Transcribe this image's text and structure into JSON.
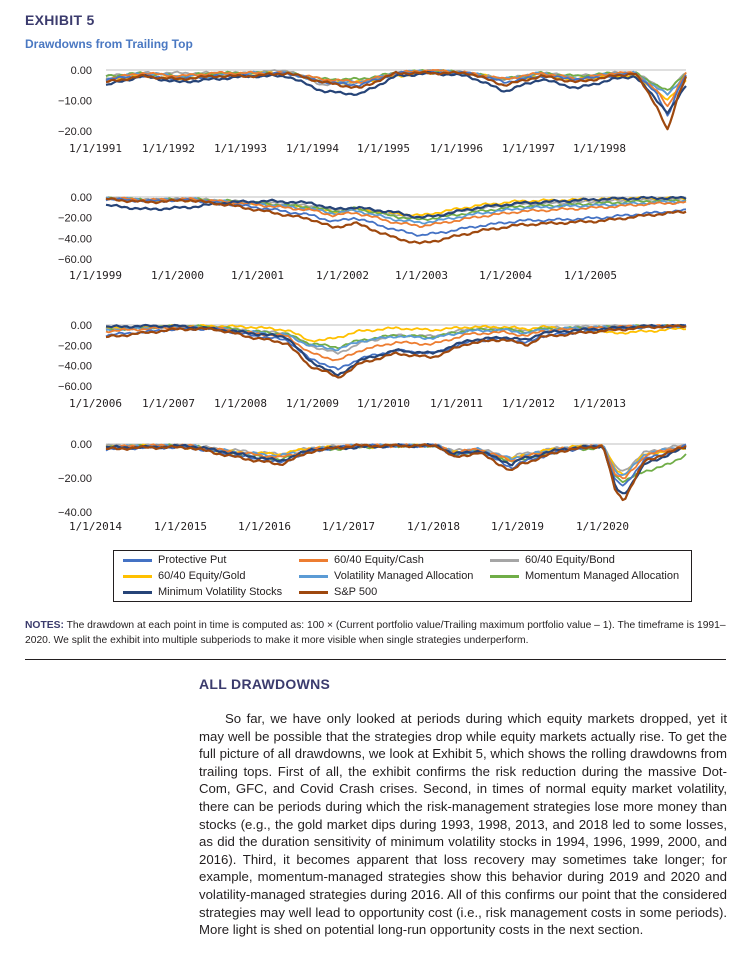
{
  "exhibit": {
    "title": "EXHIBIT 5",
    "subtitle": "Drawdowns from Trailing Top"
  },
  "colors": {
    "Protective Put": "#4472c4",
    "60/40 Equity/Cash": "#ed7d31",
    "60/40 Equity/Bond": "#a5a5a5",
    "60/40 Equity/Gold": "#ffc000",
    "Volatility Managed Allocation": "#5b9bd5",
    "Momentum Managed Allocation": "#70ad47",
    "Minimum Volatility Stocks": "#264478",
    "S&P 500": "#9e480e"
  },
  "legend": [
    {
      "name": "Protective Put",
      "color": "#4472c4"
    },
    {
      "name": "60/40 Equity/Cash",
      "color": "#ed7d31"
    },
    {
      "name": "60/40 Equity/Bond",
      "color": "#a5a5a5"
    },
    {
      "name": "60/40 Equity/Gold",
      "color": "#ffc000"
    },
    {
      "name": "Volatility Managed Allocation",
      "color": "#5b9bd5"
    },
    {
      "name": "Momentum Managed Allocation",
      "color": "#70ad47"
    },
    {
      "name": "Minimum Volatility Stocks",
      "color": "#264478"
    },
    {
      "name": "S&P 500",
      "color": "#9e480e"
    }
  ],
  "chart_data": [
    {
      "type": "line",
      "title": "",
      "yticks": [
        "0.00",
        "−10.00",
        "−20.00"
      ],
      "ylim": [
        -20,
        0
      ],
      "xlim": [
        1991,
        1999
      ],
      "xticks": [
        "1/1/1991",
        "1/1/1992",
        "1/1/1993",
        "1/1/1994",
        "1/1/1995",
        "1/1/1996",
        "1/1/1997",
        "1/1/1998"
      ],
      "x": [
        1991.0,
        1991.5,
        1992.0,
        1992.5,
        1993.0,
        1993.5,
        1994.0,
        1994.5,
        1995.0,
        1995.5,
        1996.0,
        1996.5,
        1997.0,
        1997.5,
        1998.0,
        1998.3,
        1998.6,
        1998.75,
        1998.9,
        1999.0
      ],
      "series": [
        {
          "name": "S&P 500",
          "values": [
            -4,
            -2,
            -3,
            -2,
            -2,
            -1,
            -4,
            -6,
            -1,
            -1,
            -1,
            -5,
            -2,
            -4,
            -2,
            -1,
            -12,
            -20,
            -8,
            -2
          ]
        },
        {
          "name": "Minimum Volatility Stocks",
          "values": [
            -5,
            -2,
            -4,
            -3,
            -2,
            -2,
            -7,
            -8,
            -2,
            -1,
            -2,
            -7,
            -3,
            -6,
            -3,
            -2,
            -10,
            -14,
            -9,
            -5
          ]
        },
        {
          "name": "Protective Put",
          "values": [
            -3,
            -2,
            -3,
            -2,
            -2,
            -1,
            -4,
            -5,
            -1,
            -1,
            -1,
            -4,
            -2,
            -3,
            -2,
            -1,
            -8,
            -15,
            -6,
            -2
          ]
        },
        {
          "name": "60/40 Equity/Cash",
          "values": [
            -3,
            -1,
            -2,
            -1,
            -1,
            -1,
            -3,
            -4,
            -1,
            0,
            -1,
            -3,
            -1,
            -3,
            -1,
            -1,
            -7,
            -12,
            -5,
            -1
          ]
        },
        {
          "name": "60/40 Equity/Bond",
          "values": [
            -2,
            -1,
            -1,
            -1,
            -1,
            0,
            -5,
            -4,
            -1,
            0,
            -1,
            -3,
            -1,
            -2,
            -1,
            -1,
            -5,
            -8,
            -3,
            -1
          ]
        },
        {
          "name": "60/40 Equity/Gold",
          "values": [
            -3,
            -2,
            -3,
            -2,
            -1,
            -1,
            -4,
            -4,
            -2,
            -1,
            -1,
            -3,
            -2,
            -3,
            -2,
            -2,
            -7,
            -10,
            -6,
            -3
          ]
        },
        {
          "name": "Volatility Managed Allocation",
          "values": [
            -3,
            -1,
            -2,
            -2,
            -1,
            -1,
            -4,
            -4,
            -1,
            0,
            -1,
            -3,
            -1,
            -3,
            -1,
            -1,
            -6,
            -8,
            -4,
            -2
          ]
        },
        {
          "name": "Momentum Managed Allocation",
          "values": [
            -2,
            -1,
            -2,
            -1,
            -1,
            -1,
            -3,
            -3,
            -1,
            0,
            -1,
            -3,
            -1,
            -2,
            -1,
            -1,
            -5,
            -7,
            -3,
            -1
          ]
        }
      ]
    },
    {
      "type": "line",
      "title": "",
      "yticks": [
        "0.00",
        "−20.00",
        "−40.00",
        "−60.00"
      ],
      "ylim": [
        -60,
        0
      ],
      "xlim": [
        1999,
        2006
      ],
      "xticks": [
        "1/1/1999",
        "1/1/2000",
        "1/1/2001",
        "1/1/2002",
        "1/1/2003",
        "1/1/2004",
        "1/1/2005"
      ],
      "x": [
        1999.0,
        1999.5,
        2000.0,
        2000.5,
        2001.0,
        2001.5,
        2001.75,
        2002.0,
        2002.5,
        2002.8,
        2003.0,
        2003.5,
        2004.0,
        2004.5,
        2005.0,
        2005.5,
        2006.0
      ],
      "series": [
        {
          "name": "S&P 500",
          "values": [
            -2,
            -5,
            -3,
            -8,
            -15,
            -22,
            -30,
            -25,
            -40,
            -45,
            -42,
            -33,
            -27,
            -25,
            -23,
            -18,
            -14
          ]
        },
        {
          "name": "Minimum Volatility Stocks",
          "values": [
            -8,
            -12,
            -10,
            -5,
            -4,
            -6,
            -12,
            -10,
            -15,
            -20,
            -18,
            -10,
            -6,
            -4,
            -2,
            -1,
            -1
          ]
        },
        {
          "name": "Protective Put",
          "values": [
            -2,
            -4,
            -3,
            -7,
            -12,
            -18,
            -24,
            -20,
            -32,
            -37,
            -35,
            -28,
            -23,
            -22,
            -20,
            -16,
            -13
          ]
        },
        {
          "name": "60/40 Equity/Cash",
          "values": [
            -1,
            -3,
            -2,
            -5,
            -9,
            -13,
            -18,
            -15,
            -25,
            -28,
            -26,
            -19,
            -14,
            -12,
            -10,
            -7,
            -5
          ]
        },
        {
          "name": "60/40 Equity/Bond",
          "values": [
            -1,
            -3,
            -2,
            -4,
            -6,
            -9,
            -13,
            -10,
            -18,
            -20,
            -17,
            -11,
            -7,
            -6,
            -4,
            -3,
            -2
          ]
        },
        {
          "name": "60/40 Equity/Gold",
          "values": [
            -2,
            -4,
            -3,
            -5,
            -8,
            -11,
            -15,
            -12,
            -16,
            -18,
            -15,
            -8,
            -4,
            -3,
            -2,
            -1,
            -1
          ]
        },
        {
          "name": "Volatility Managed Allocation",
          "values": [
            -1,
            -3,
            -2,
            -5,
            -8,
            -12,
            -16,
            -13,
            -22,
            -25,
            -23,
            -16,
            -11,
            -9,
            -8,
            -6,
            -4
          ]
        },
        {
          "name": "Momentum Managed Allocation",
          "values": [
            -1,
            -3,
            -2,
            -4,
            -7,
            -10,
            -14,
            -11,
            -19,
            -22,
            -20,
            -14,
            -9,
            -8,
            -6,
            -4,
            -3
          ]
        }
      ]
    },
    {
      "type": "line",
      "title": "",
      "yticks": [
        "0.00",
        "−20.00",
        "−40.00",
        "−60.00"
      ],
      "ylim": [
        -60,
        0
      ],
      "xlim": [
        2006,
        2014
      ],
      "xticks": [
        "1/1/2006",
        "1/1/2007",
        "1/1/2008",
        "1/1/2009",
        "1/1/2010",
        "1/1/2011",
        "1/1/2012",
        "1/1/2013"
      ],
      "x": [
        2006.0,
        2006.5,
        2007.0,
        2007.5,
        2008.0,
        2008.5,
        2008.8,
        2009.0,
        2009.2,
        2009.5,
        2010.0,
        2010.5,
        2011.0,
        2011.5,
        2011.8,
        2012.0,
        2012.5,
        2013.0,
        2013.5,
        2014.0
      ],
      "series": [
        {
          "name": "S&P 500",
          "values": [
            -12,
            -8,
            -4,
            -4,
            -12,
            -18,
            -40,
            -45,
            -52,
            -38,
            -28,
            -32,
            -18,
            -14,
            -20,
            -12,
            -8,
            -5,
            -2,
            -1
          ]
        },
        {
          "name": "Minimum Volatility Stocks",
          "values": [
            -2,
            -1,
            -1,
            -4,
            -8,
            -12,
            -35,
            -42,
            -50,
            -35,
            -25,
            -28,
            -15,
            -12,
            -15,
            -8,
            -5,
            -3,
            -1,
            -1
          ]
        },
        {
          "name": "Protective Put",
          "values": [
            -10,
            -7,
            -4,
            -4,
            -10,
            -15,
            -33,
            -38,
            -44,
            -33,
            -25,
            -28,
            -17,
            -13,
            -18,
            -11,
            -7,
            -4,
            -2,
            -1
          ]
        },
        {
          "name": "60/40 Equity/Cash",
          "values": [
            -6,
            -4,
            -2,
            -3,
            -8,
            -11,
            -27,
            -31,
            -35,
            -25,
            -17,
            -19,
            -9,
            -7,
            -11,
            -6,
            -4,
            -2,
            -1,
            -1
          ]
        },
        {
          "name": "60/40 Equity/Bond",
          "values": [
            -4,
            -3,
            -1,
            -2,
            -6,
            -8,
            -20,
            -24,
            -28,
            -18,
            -10,
            -11,
            -4,
            -3,
            -6,
            -3,
            -2,
            -1,
            -1,
            -1
          ]
        },
        {
          "name": "60/40 Equity/Gold",
          "values": [
            -3,
            -2,
            -1,
            -1,
            -2,
            -5,
            -15,
            -15,
            -12,
            -6,
            -3,
            -5,
            -2,
            -2,
            -4,
            -2,
            -4,
            -8,
            -6,
            -3
          ]
        },
        {
          "name": "Volatility Managed Allocation",
          "values": [
            -5,
            -3,
            -2,
            -3,
            -7,
            -10,
            -20,
            -22,
            -24,
            -16,
            -11,
            -13,
            -6,
            -5,
            -8,
            -5,
            -3,
            -2,
            -1,
            -1
          ]
        },
        {
          "name": "Momentum Managed Allocation",
          "values": [
            -5,
            -3,
            -1,
            -2,
            -6,
            -9,
            -18,
            -20,
            -22,
            -15,
            -10,
            -12,
            -5,
            -4,
            -7,
            -4,
            -3,
            -2,
            -1,
            -1
          ]
        }
      ]
    },
    {
      "type": "line",
      "title": "",
      "yticks": [
        "0.00",
        "−20.00",
        "−40.00"
      ],
      "ylim": [
        -40,
        0
      ],
      "xlim": [
        2014,
        2021
      ],
      "xticks": [
        "1/1/2014",
        "1/1/2015",
        "1/1/2016",
        "1/1/2017",
        "1/1/2018",
        "1/1/2019",
        "1/1/2020"
      ],
      "x": [
        2014.0,
        2014.5,
        2015.0,
        2015.6,
        2016.1,
        2016.5,
        2017.0,
        2017.5,
        2018.0,
        2018.2,
        2018.5,
        2018.9,
        2019.0,
        2019.5,
        2020.0,
        2020.15,
        2020.25,
        2020.5,
        2020.8,
        2021.0
      ],
      "series": [
        {
          "name": "S&P 500",
          "values": [
            -3,
            -2,
            -2,
            -8,
            -12,
            -4,
            -1,
            -1,
            -1,
            -8,
            -5,
            -16,
            -12,
            -4,
            -1,
            -28,
            -33,
            -10,
            -5,
            -1
          ]
        },
        {
          "name": "Minimum Volatility Stocks",
          "values": [
            -2,
            -2,
            -1,
            -6,
            -10,
            -3,
            -2,
            -1,
            -1,
            -6,
            -4,
            -12,
            -9,
            -3,
            -1,
            -26,
            -30,
            -12,
            -6,
            -2
          ]
        },
        {
          "name": "Protective Put",
          "values": [
            -3,
            -2,
            -2,
            -7,
            -11,
            -4,
            -1,
            -1,
            -1,
            -7,
            -4,
            -14,
            -11,
            -4,
            -1,
            -22,
            -25,
            -9,
            -5,
            -1
          ]
        },
        {
          "name": "60/40 Equity/Cash",
          "values": [
            -2,
            -1,
            -1,
            -5,
            -8,
            -3,
            -1,
            -1,
            -1,
            -5,
            -3,
            -10,
            -8,
            -3,
            -1,
            -18,
            -21,
            -7,
            -3,
            -1
          ]
        },
        {
          "name": "60/40 Equity/Bond",
          "values": [
            -1,
            -1,
            -1,
            -4,
            -6,
            -2,
            -1,
            -1,
            -1,
            -4,
            -3,
            -8,
            -6,
            -2,
            -1,
            -14,
            -16,
            -5,
            -2,
            -1
          ]
        },
        {
          "name": "60/40 Equity/Gold",
          "values": [
            -2,
            -1,
            -2,
            -5,
            -6,
            -2,
            -2,
            -1,
            -1,
            -5,
            -4,
            -9,
            -7,
            -2,
            -1,
            -15,
            -18,
            -6,
            -4,
            -2
          ]
        },
        {
          "name": "Volatility Managed Allocation",
          "values": [
            -2,
            -1,
            -1,
            -5,
            -7,
            -3,
            -1,
            -1,
            -1,
            -5,
            -3,
            -9,
            -7,
            -3,
            -1,
            -16,
            -19,
            -6,
            -3,
            -1
          ]
        },
        {
          "name": "Momentum Managed Allocation",
          "values": [
            -2,
            -1,
            -1,
            -6,
            -9,
            -4,
            -2,
            -1,
            -1,
            -6,
            -4,
            -11,
            -9,
            -4,
            -2,
            -19,
            -22,
            -16,
            -12,
            -6
          ]
        }
      ]
    }
  ],
  "notes": {
    "label": "NOTES:",
    "text": " The drawdown at each point in time is computed as: 100 × (Current portfolio value/Trailing maximum portfolio value – 1). The timeframe is 1991–2020. We split the exhibit into multiple subperiods to make it more visible when single strategies underperform."
  },
  "section": {
    "title": "ALL DRAWDOWNS",
    "body": "So far, we have only looked at periods during which equity markets dropped, yet it may well be possible that the strategies drop while equity markets actually rise. To get the full picture of all drawdowns, we look at Exhibit 5, which shows the rolling drawdowns from trailing tops. First of all, the exhibit confirms the risk reduction during the massive Dot-Com, GFC, and Covid Crash crises. Second, in times of normal equity market volatility, there can be periods during which the risk-management strategies lose more money than stocks (e.g., the gold market dips during 1993, 1998, 2013, and 2018 led to some losses, as did the duration sensitivity of minimum volatility stocks in 1994, 1996, 1999, 2000, and 2016). Third, it becomes apparent that loss recovery may sometimes take longer; for example, momentum-managed strategies show this behavior during 2019 and 2020 and volatility-managed strategies during 2016. All of this confirms our point that the considered strategies may well lead to opportunity cost (i.e., risk management costs in some periods). More light is shed on potential long-run opportunity costs in the next section."
  }
}
